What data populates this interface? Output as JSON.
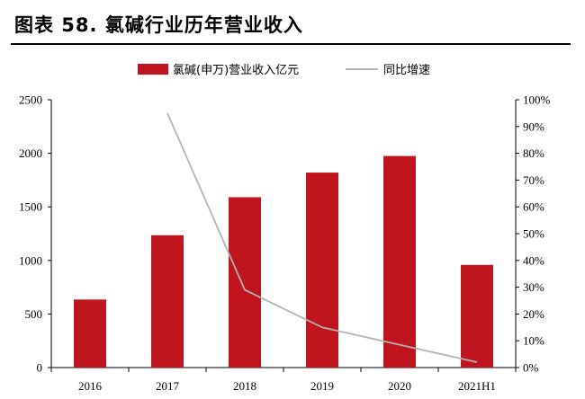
{
  "title": "图表 58. 氯碱行业历年营业收入",
  "chart_data": {
    "type": "bar",
    "categories": [
      "2016",
      "2017",
      "2018",
      "2019",
      "2020",
      "2021H1"
    ],
    "series": [
      {
        "name": "氯碱(申万)营业收入亿元",
        "type": "bar",
        "axis": "left",
        "values": [
          635,
          1235,
          1590,
          1820,
          1975,
          958
        ],
        "color": "#c0141e"
      },
      {
        "name": "同比增速",
        "type": "line",
        "axis": "right",
        "values": [
          null,
          0.95,
          0.29,
          0.15,
          0.085,
          0.02
        ],
        "color": "#b4b4b4"
      }
    ],
    "ylim_left": [
      0,
      2500
    ],
    "yticks_left": [
      "0",
      "500",
      "1000",
      "1500",
      "2000",
      "2500"
    ],
    "ylim_right": [
      0,
      1
    ],
    "yticks_right": [
      "0%",
      "10%",
      "20%",
      "30%",
      "40%",
      "50%",
      "60%",
      "70%",
      "80%",
      "90%",
      "100%"
    ],
    "legend_position": "top",
    "grid": false
  }
}
